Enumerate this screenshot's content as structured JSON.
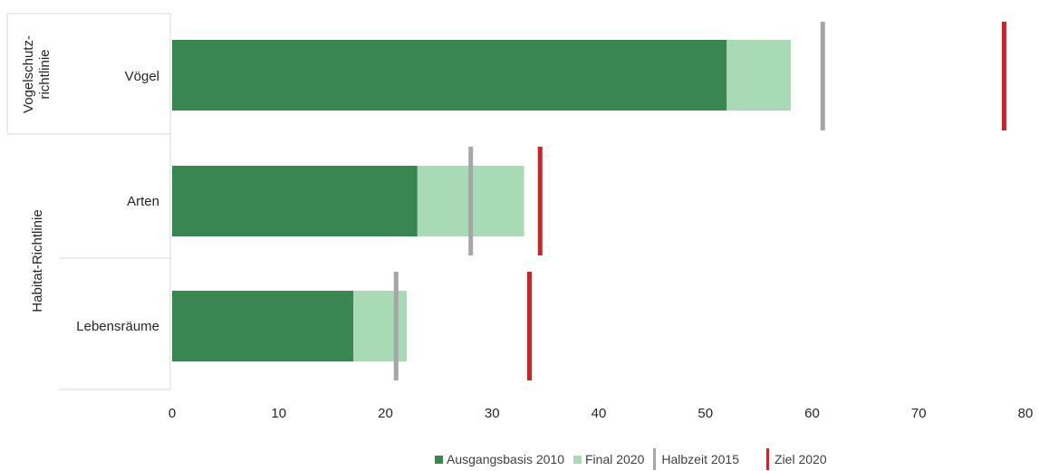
{
  "chart_data": {
    "type": "bar",
    "orientation": "horizontal",
    "stacked": true,
    "groups": [
      {
        "label": "Vogelschutz-\nrichtlinie",
        "categories": [
          "Vögel"
        ]
      },
      {
        "label": "Habitat-Richtlinie",
        "categories": [
          "Arten",
          "Lebensräume"
        ]
      }
    ],
    "categories": [
      "Vögel",
      "Arten",
      "Lebensräume"
    ],
    "series": [
      {
        "name": "Ausgangsbasis 2010",
        "values": [
          52,
          23,
          17
        ],
        "color": "#3a8650"
      },
      {
        "name": "Final 2020",
        "values": [
          6,
          10,
          5
        ],
        "color": "#a8dab5"
      }
    ],
    "markers": [
      {
        "name": "Halbzeit 2015",
        "values": [
          61,
          28,
          21
        ],
        "color": "#a6a6a6"
      },
      {
        "name": "Ziel 2020",
        "values": [
          78,
          34.5,
          33.5
        ],
        "color": "#c0282e"
      }
    ],
    "xlim": [
      0,
      80
    ],
    "xticks": [
      0,
      10,
      20,
      30,
      40,
      50,
      60,
      70,
      80
    ],
    "grid": false,
    "legend_position": "bottom"
  },
  "legend": {
    "items": [
      {
        "label": "Ausgangsbasis 2010",
        "color": "#3a8650",
        "kind": "box"
      },
      {
        "label": "Final 2020",
        "color": "#a8dab5",
        "kind": "box"
      },
      {
        "label": "Halbzeit 2015",
        "color": "#a6a6a6",
        "kind": "line"
      },
      {
        "label": "Ziel 2020",
        "color": "#c0282e",
        "kind": "line"
      }
    ]
  }
}
